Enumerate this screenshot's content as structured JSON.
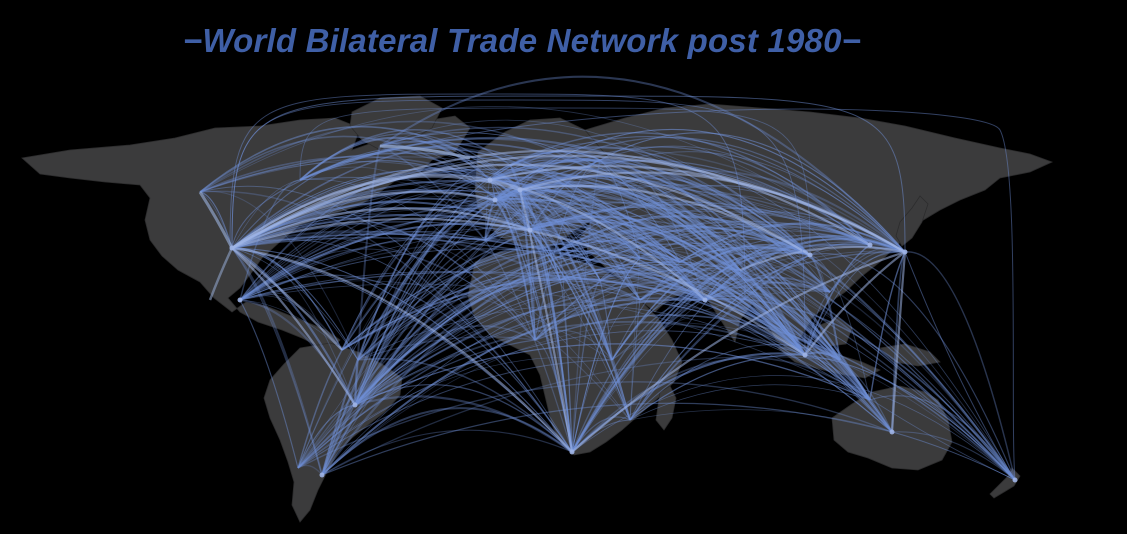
{
  "title": "−World Bilateral Trade Network post 1980−",
  "colors": {
    "background": "#000000",
    "land": "#3b3b3c",
    "title": "#3f5fa6",
    "edge": "#6f8fd6",
    "edge_highlight": "#9fb4e6"
  }
}
